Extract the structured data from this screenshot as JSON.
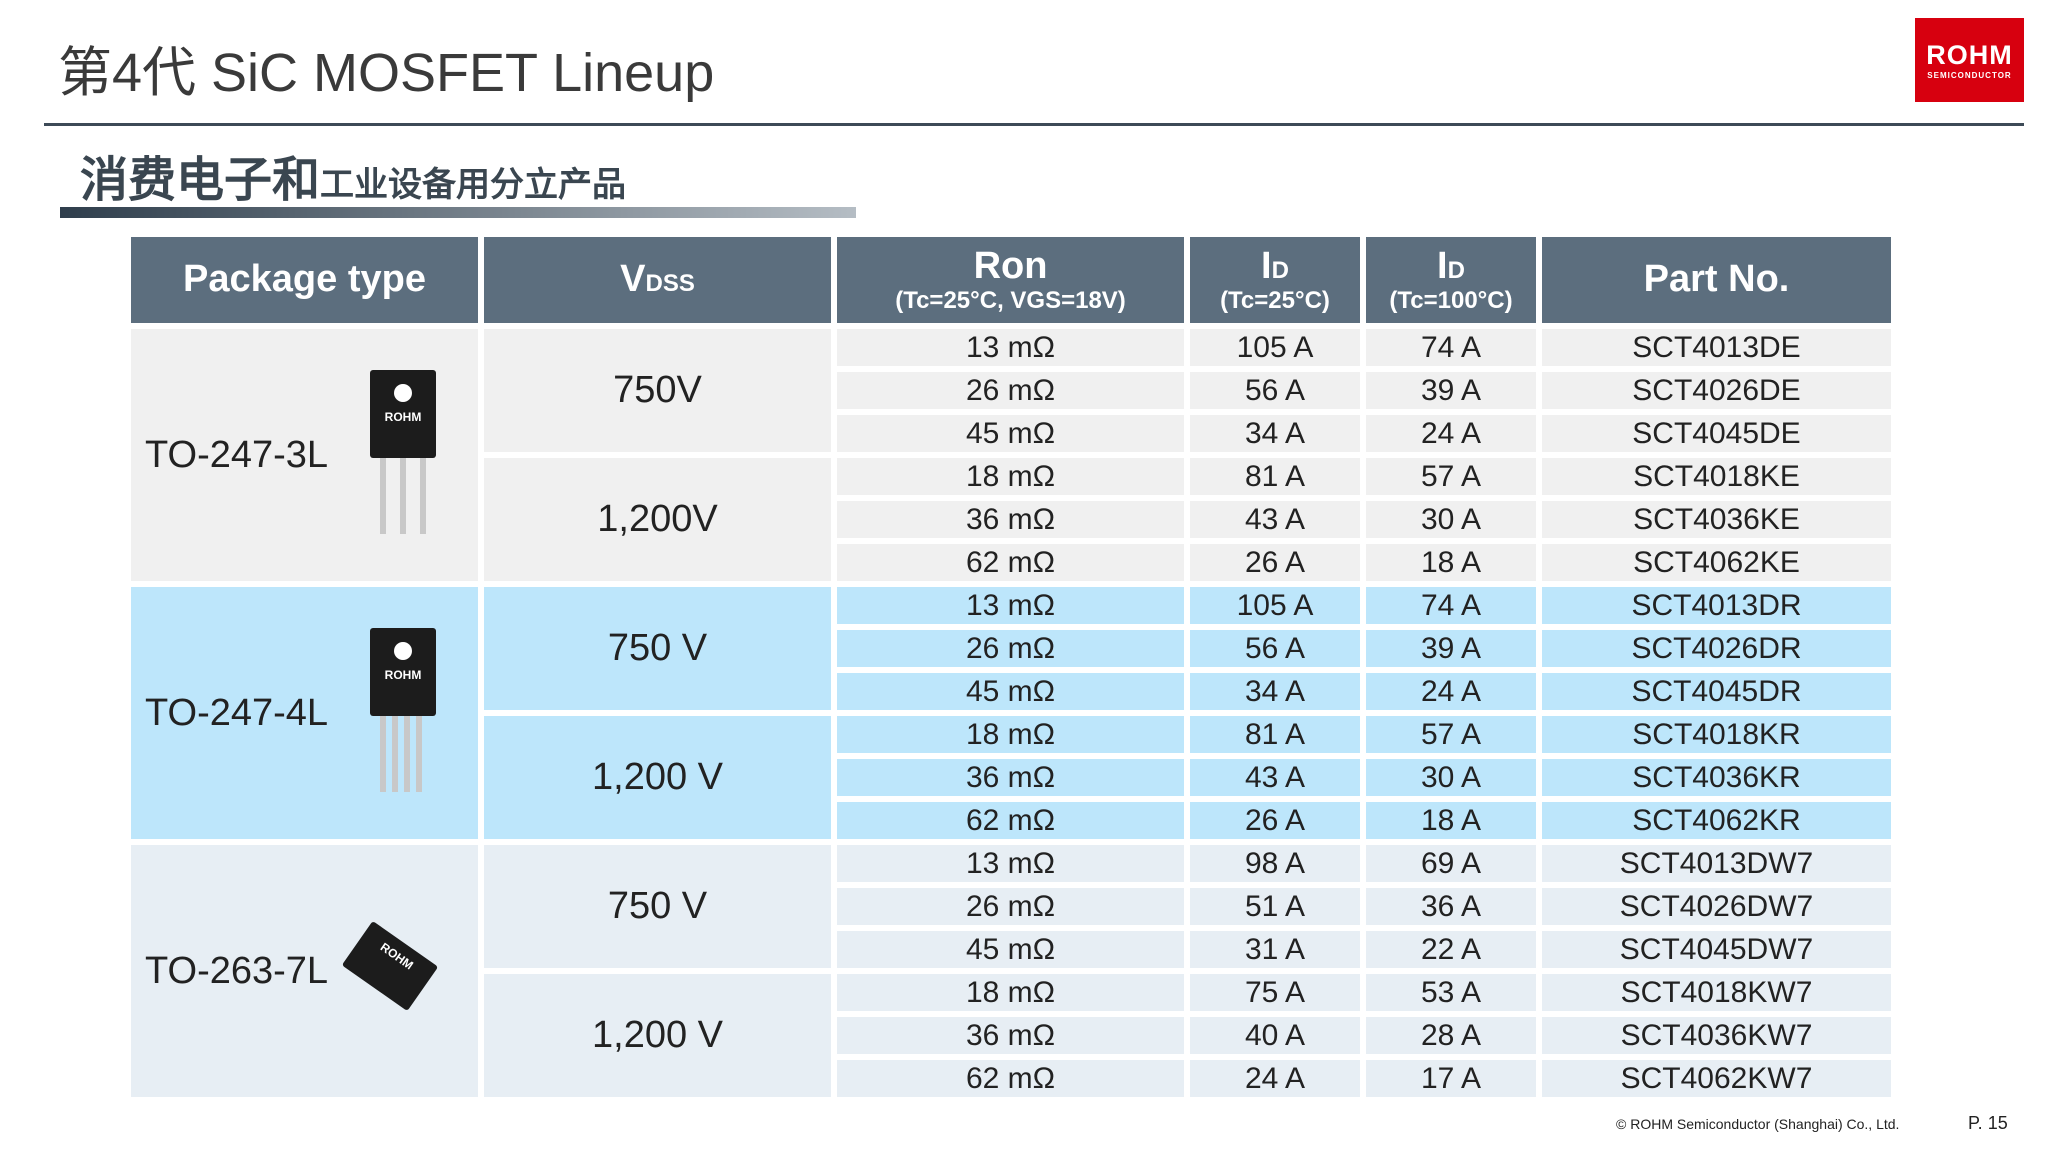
{
  "header": {
    "title": "第4代 SiC MOSFET Lineup",
    "subtitle_large": "消费电子和",
    "subtitle_small": "工业设备用分立产品",
    "logo": "ROHM",
    "logo_sub": "SEMICONDUCTOR"
  },
  "table": {
    "headers": [
      {
        "main": "Package type"
      },
      {
        "main": "V",
        "sub": "DSS"
      },
      {
        "main": "Ron",
        "note": "(Tc=25°C, VGS=18V)"
      },
      {
        "main": "I",
        "sub": "D",
        "note": "(Tc=25°C)"
      },
      {
        "main": "I",
        "sub": "D",
        "note": "(Tc=100°C)"
      },
      {
        "main": "Part No."
      }
    ],
    "groups": [
      {
        "package": "TO-247-3L",
        "chip": "ROHM",
        "voltages": [
          {
            "vdss": "750V",
            "rows": [
              [
                "13 mΩ",
                "105 A",
                "74 A",
                "SCT4013DE"
              ],
              [
                "26 mΩ",
                "56 A",
                "39 A",
                "SCT4026DE"
              ],
              [
                "45 mΩ",
                "34 A",
                "24 A",
                "SCT4045DE"
              ]
            ]
          },
          {
            "vdss": "1,200V",
            "rows": [
              [
                "18 mΩ",
                "81 A",
                "57 A",
                "SCT4018KE"
              ],
              [
                "36 mΩ",
                "43 A",
                "30 A",
                "SCT4036KE"
              ],
              [
                "62 mΩ",
                "26 A",
                "18 A",
                "SCT4062KE"
              ]
            ]
          }
        ]
      },
      {
        "package": "TO-247-4L",
        "chip": "ROHM",
        "voltages": [
          {
            "vdss": "750 V",
            "rows": [
              [
                "13 mΩ",
                "105 A",
                "74 A",
                "SCT4013DR"
              ],
              [
                "26 mΩ",
                "56 A",
                "39 A",
                "SCT4026DR"
              ],
              [
                "45 mΩ",
                "34 A",
                "24 A",
                "SCT4045DR"
              ]
            ]
          },
          {
            "vdss": "1,200 V",
            "rows": [
              [
                "18 mΩ",
                "81 A",
                "57 A",
                "SCT4018KR"
              ],
              [
                "36 mΩ",
                "43 A",
                "30 A",
                "SCT4036KR"
              ],
              [
                "62 mΩ",
                "26 A",
                "18 A",
                "SCT4062KR"
              ]
            ]
          }
        ]
      },
      {
        "package": "TO-263-7L",
        "chip": "ROHM",
        "voltages": [
          {
            "vdss": "750 V",
            "rows": [
              [
                "13 mΩ",
                "98 A",
                "69 A",
                "SCT4013DW7"
              ],
              [
                "26 mΩ",
                "51 A",
                "36 A",
                "SCT4026DW7"
              ],
              [
                "45 mΩ",
                "31 A",
                "22 A",
                "SCT4045DW7"
              ]
            ]
          },
          {
            "vdss": "1,200 V",
            "rows": [
              [
                "18 mΩ",
                "75 A",
                "53 A",
                "SCT4018KW7"
              ],
              [
                "36 mΩ",
                "40 A",
                "28 A",
                "SCT4036KW7"
              ],
              [
                "62 mΩ",
                "24 A",
                "17 A",
                "SCT4062KW7"
              ]
            ]
          }
        ]
      }
    ]
  },
  "footer": {
    "copyright": "© ROHM Semiconductor (Shanghai) Co., Ltd.",
    "page": "P. 15"
  }
}
